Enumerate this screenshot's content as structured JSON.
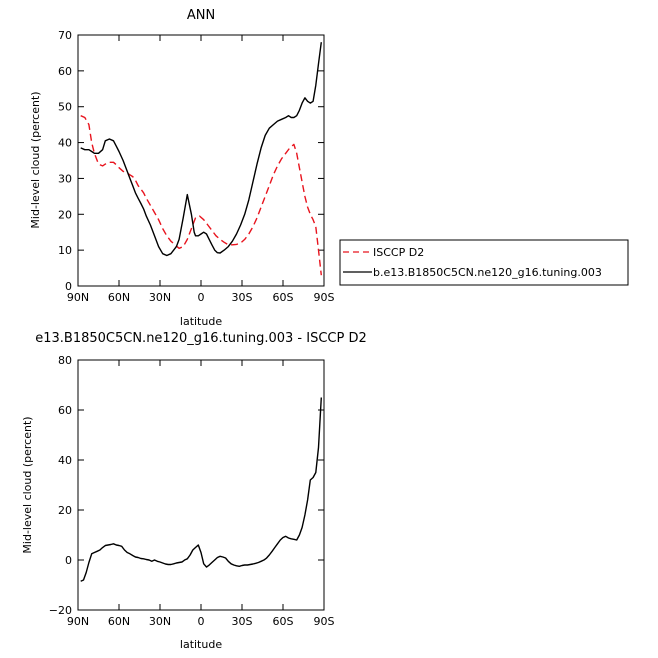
{
  "chart_data": [
    {
      "type": "line",
      "title": "ANN",
      "xlabel": "latitude",
      "ylabel": "Mid-level cloud (percent)",
      "xlim": [
        90,
        -90
      ],
      "ylim": [
        0,
        70
      ],
      "xticks": [
        90,
        60,
        30,
        0,
        -30,
        -60,
        -90
      ],
      "xtick_labels": [
        "90N",
        "60N",
        "30N",
        "0",
        "30S",
        "60S",
        "90S"
      ],
      "yticks": [
        0,
        10,
        20,
        30,
        40,
        50,
        60,
        70
      ],
      "ytick_labels": [
        "0",
        "10",
        "20",
        "30",
        "40",
        "50",
        "60",
        "70"
      ],
      "grid": false,
      "legend_position": "right-outside",
      "series": [
        {
          "name": "ISCCP D2",
          "color": "#e8141e",
          "style": "dashed",
          "x": [
            88,
            85,
            82,
            80,
            78,
            75,
            72,
            70,
            67,
            64,
            62,
            60,
            57,
            54,
            52,
            50,
            48,
            46,
            44,
            42,
            40,
            37,
            34,
            31,
            28,
            25,
            22,
            19,
            16,
            13,
            10,
            7,
            4,
            1,
            -2,
            -5,
            -8,
            -11,
            -14,
            -17,
            -20,
            -23,
            -26,
            -29,
            -32,
            -35,
            -38,
            -41,
            -44,
            -47,
            -50,
            -53,
            -56,
            -59,
            -62,
            -65,
            -68,
            -70,
            -72,
            -74,
            -76,
            -78,
            -80,
            -82,
            -84,
            -86,
            -88
          ],
          "y": [
            47.5,
            47,
            45,
            40,
            37,
            34,
            33.5,
            34,
            34.5,
            34.5,
            33.8,
            33,
            32,
            31.5,
            31,
            30.5,
            29.5,
            28,
            27,
            26,
            24.5,
            22.5,
            20.5,
            18.5,
            16,
            14,
            12.5,
            11.5,
            10.5,
            11,
            13,
            16,
            19,
            19.5,
            18.5,
            17,
            15.5,
            14,
            13,
            12.2,
            11.5,
            11.5,
            11.6,
            12,
            13,
            14.5,
            16.5,
            19,
            22,
            25,
            28,
            31,
            33.5,
            35.5,
            37,
            38.5,
            39.5,
            37,
            33,
            29,
            25,
            22,
            20,
            18.5,
            16.5,
            10,
            3
          ]
        },
        {
          "name": "b.e13.B1850C5CN.ne120_g16.tuning.003",
          "color": "#000000",
          "style": "solid",
          "x": [
            88,
            85,
            82,
            80,
            78,
            75,
            72,
            70,
            67,
            64,
            62,
            60,
            57,
            54,
            52,
            50,
            48,
            46,
            44,
            42,
            40,
            37,
            34,
            31,
            28,
            25,
            22,
            20,
            18,
            16,
            13,
            10,
            7,
            5,
            4,
            2,
            0,
            -2,
            -4,
            -6,
            -8,
            -10,
            -12,
            -14,
            -17,
            -20,
            -23,
            -26,
            -29,
            -32,
            -35,
            -38,
            -41,
            -44,
            -47,
            -50,
            -53,
            -56,
            -59,
            -62,
            -64,
            -66,
            -68,
            -70,
            -72,
            -74,
            -76,
            -78,
            -80,
            -82,
            -84,
            -86,
            -88
          ],
          "y": [
            38.5,
            38,
            38,
            37.5,
            37,
            37,
            38,
            40.5,
            41,
            40.5,
            39,
            37.5,
            35,
            32,
            30,
            28,
            26,
            24.5,
            23,
            21.5,
            19.5,
            17,
            14,
            11,
            9,
            8.5,
            9,
            10,
            11,
            13,
            19,
            25.5,
            20,
            15,
            14,
            14,
            14.5,
            15,
            14.5,
            13,
            11.5,
            10,
            9.3,
            9.2,
            10,
            11,
            12.5,
            14.5,
            17,
            20,
            24,
            29,
            34,
            38.5,
            42,
            44,
            45,
            46,
            46.5,
            47,
            47.5,
            47,
            47,
            47.5,
            49,
            51,
            52.5,
            51.5,
            51,
            51.5,
            56,
            62,
            68
          ]
        }
      ]
    },
    {
      "type": "line",
      "title": "e13.B1850C5CN.ne120_g16.tuning.003 - ISCCP D2",
      "xlabel": "latitude",
      "ylabel": "Mid-level cloud (percent)",
      "xlim": [
        90,
        -90
      ],
      "ylim": [
        -20,
        80
      ],
      "xticks": [
        90,
        60,
        30,
        0,
        -30,
        -60,
        -90
      ],
      "xtick_labels": [
        "90N",
        "60N",
        "30N",
        "0",
        "30S",
        "60S",
        "90S"
      ],
      "yticks": [
        -20,
        0,
        20,
        40,
        60,
        80
      ],
      "ytick_labels": [
        "−20",
        "0",
        "20",
        "40",
        "60",
        "80"
      ],
      "grid": false,
      "series": [
        {
          "color": "#000000",
          "style": "solid",
          "x": [
            88,
            86,
            84,
            82,
            80,
            78,
            76,
            74,
            72,
            70,
            68,
            66,
            64,
            62,
            60,
            58,
            56,
            54,
            52,
            50,
            48,
            46,
            44,
            42,
            40,
            38,
            36,
            34,
            32,
            30,
            28,
            26,
            24,
            22,
            20,
            18,
            16,
            14,
            12,
            10,
            8,
            6,
            4,
            2,
            0,
            -2,
            -4,
            -6,
            -8,
            -10,
            -12,
            -14,
            -16,
            -18,
            -20,
            -22,
            -24,
            -26,
            -28,
            -30,
            -32,
            -34,
            -36,
            -38,
            -40,
            -42,
            -44,
            -46,
            -48,
            -50,
            -52,
            -54,
            -56,
            -58,
            -60,
            -62,
            -64,
            -66,
            -68,
            -70,
            -72,
            -74,
            -76,
            -78,
            -80,
            -82,
            -84,
            -86,
            -88
          ],
          "y": [
            -8.5,
            -8,
            -5,
            -1,
            2.5,
            3,
            3.5,
            4,
            5,
            5.8,
            6,
            6.2,
            6.5,
            6,
            5.8,
            5.5,
            4,
            3,
            2.5,
            1.8,
            1.2,
            1,
            0.6,
            0.5,
            0.2,
            0,
            -0.5,
            0,
            -0.5,
            -0.8,
            -1.2,
            -1.6,
            -1.8,
            -1.8,
            -1.5,
            -1.2,
            -1,
            -0.8,
            0,
            0.5,
            2,
            4,
            5,
            6,
            3,
            -1.5,
            -2.8,
            -2,
            -1,
            0,
            1,
            1.5,
            1.2,
            0.8,
            -0.5,
            -1.5,
            -2,
            -2.3,
            -2.5,
            -2.2,
            -2,
            -2,
            -1.8,
            -1.6,
            -1.3,
            -1,
            -0.5,
            0,
            0.8,
            2,
            3.5,
            5,
            6.5,
            8,
            9,
            9.5,
            8.8,
            8.5,
            8.3,
            8,
            10,
            13,
            18,
            24,
            32,
            33,
            35,
            45,
            65
          ]
        }
      ]
    }
  ]
}
